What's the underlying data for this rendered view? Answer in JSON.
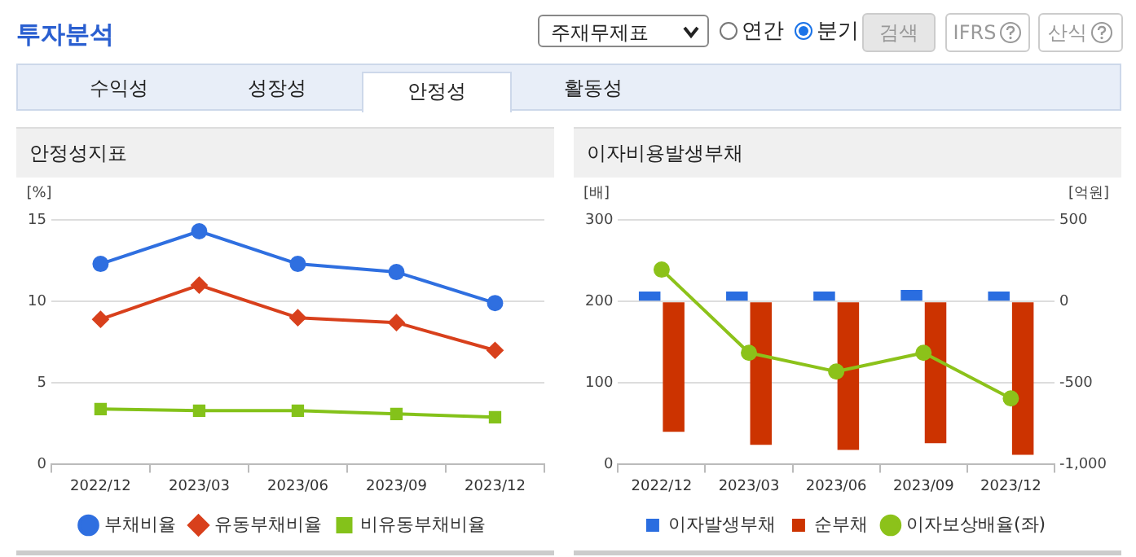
{
  "chart_data": [
    {
      "type": "other",
      "title": "투자분석",
      "annotations": [
        "주재무제표",
        "연간",
        "분기",
        "검색",
        "IFRS",
        "산식",
        "수익성",
        "성장성",
        "안정성",
        "활동성"
      ]
    },
    {
      "type": "line",
      "title": "안정성지표",
      "ylabel": "[%]",
      "categories": [
        "2022/12",
        "2023/03",
        "2023/06",
        "2023/09",
        "2023/12"
      ],
      "series": [
        {
          "name": "부채비율",
          "color": "#2f6fe0",
          "marker": "circle",
          "values": [
            12.3,
            14.3,
            12.3,
            11.8,
            9.9
          ]
        },
        {
          "name": "유동부채비율",
          "color": "#d8401c",
          "marker": "diamond",
          "values": [
            8.9,
            11.0,
            9.0,
            8.7,
            7.0
          ]
        },
        {
          "name": "비유동부채비율",
          "color": "#84c21a",
          "marker": "square",
          "values": [
            3.4,
            3.3,
            3.3,
            3.1,
            2.9
          ]
        }
      ],
      "ylim": [
        0,
        15
      ],
      "yticks": [
        0,
        5,
        10,
        15
      ],
      "grid": "y",
      "legend": "bottom"
    },
    {
      "type": "bar",
      "title": "이자비용발생부채",
      "ylabel": "[배]",
      "y2label": "[억원]",
      "categories": [
        "2022/12",
        "2023/03",
        "2023/06",
        "2023/09",
        "2023/12"
      ],
      "series": [
        {
          "name": "이자발생부채",
          "color": "#2a6de0",
          "axis": "y2",
          "values": [
            60,
            60,
            60,
            70,
            60
          ]
        },
        {
          "name": "순부채",
          "color": "#cc3300",
          "axis": "y2",
          "values": [
            -800,
            -880,
            -910,
            -870,
            -940
          ]
        },
        {
          "name": "이자보상배율(좌)",
          "type": "line",
          "color": "#8cc21a",
          "marker": "circle",
          "axis": "y",
          "values": [
            239,
            137,
            114,
            137,
            81
          ]
        }
      ],
      "ylim": [
        0,
        300
      ],
      "yticks": [
        0,
        100,
        200,
        300
      ],
      "y2lim": [
        -1000,
        500
      ],
      "y2ticks": [
        {
          "value": -1000,
          "label": "-1,000"
        },
        -500,
        0,
        500
      ],
      "grid": "y",
      "legend": "bottom"
    }
  ]
}
